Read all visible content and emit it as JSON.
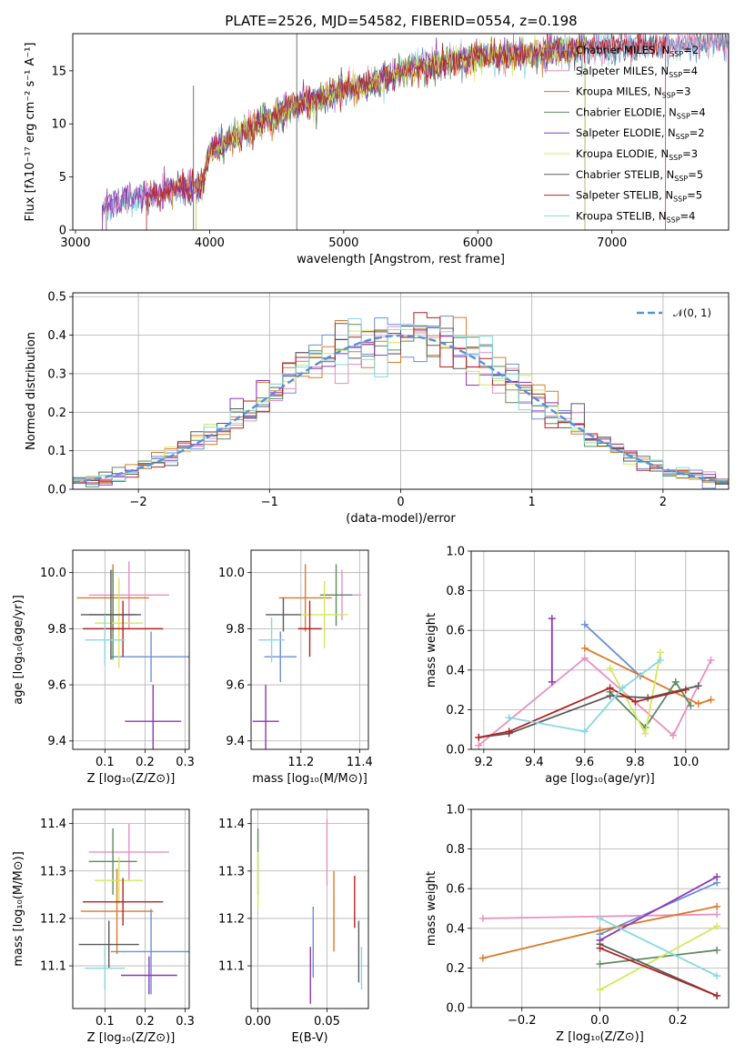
{
  "colors": {
    "chabrier_miles": "#6b8fd6",
    "salpeter_miles": "#e88fc0",
    "kroupa_miles": "#d97a2b",
    "chabrier_elodie": "#5e8a5e",
    "salpeter_elodie": "#8e35b8",
    "kroupa_elodie": "#d4e85a",
    "chabrier_stelib": "#5a5a5a",
    "salpeter_stelib": "#b22222",
    "kroupa_stelib": "#86d8e0"
  },
  "chart_data": [
    {
      "id": "spectrum",
      "type": "line",
      "title": "PLATE=2526, MJD=54582, FIBERID=0554, z=0.198",
      "xlabel": "wavelength [Angstrom, rest frame]",
      "ylabel": "Flux [fλ10⁻¹⁷ erg cm⁻² s⁻¹ A⁻¹]",
      "xlim": [
        2980,
        7870
      ],
      "ylim": [
        0,
        18.5
      ],
      "xticks": [
        "3000",
        "4000",
        "5000",
        "6000",
        "7000"
      ],
      "yticks": [
        "0",
        "5",
        "10",
        "15"
      ],
      "legend_position": "top-right",
      "legend": [
        {
          "key": "chabrier_miles",
          "label": "Chabrier MILES, N",
          "sub": "SSP",
          "suffix": "=2"
        },
        {
          "key": "salpeter_miles",
          "label": "Salpeter MILES, N",
          "sub": "SSP",
          "suffix": "=4"
        },
        {
          "key": "kroupa_miles",
          "label": "Kroupa MILES, N",
          "sub": "SSP",
          "suffix": "=3"
        },
        {
          "key": "chabrier_elodie",
          "label": "Chabrier ELODIE, N",
          "sub": "SSP",
          "suffix": "=4"
        },
        {
          "key": "salpeter_elodie",
          "label": "Salpeter ELODIE, N",
          "sub": "SSP",
          "suffix": "=2"
        },
        {
          "key": "kroupa_elodie",
          "label": "Kroupa ELODIE, N",
          "sub": "SSP",
          "suffix": "=3"
        },
        {
          "key": "chabrier_stelib",
          "label": "Chabrier STELIB, N",
          "sub": "SSP",
          "suffix": "=5"
        },
        {
          "key": "salpeter_stelib",
          "label": "Salpeter STELIB, N",
          "sub": "SSP",
          "suffix": "=5"
        },
        {
          "key": "kroupa_stelib",
          "label": "Kroupa STELIB, N",
          "sub": "SSP",
          "suffix": "=4"
        }
      ],
      "continuum": [
        [
          3200,
          2.0
        ],
        [
          3400,
          3.0
        ],
        [
          3600,
          3.3
        ],
        [
          3800,
          4.0
        ],
        [
          3950,
          4.2
        ],
        [
          4000,
          7.5
        ],
        [
          4200,
          8.8
        ],
        [
          4400,
          10.3
        ],
        [
          4600,
          11.5
        ],
        [
          4800,
          12.3
        ],
        [
          5000,
          13.2
        ],
        [
          5200,
          13.8
        ],
        [
          5400,
          14.8
        ],
        [
          5600,
          15.4
        ],
        [
          5800,
          15.9
        ],
        [
          6000,
          16.2
        ],
        [
          6200,
          16.5
        ],
        [
          6400,
          16.6
        ],
        [
          6600,
          16.9
        ],
        [
          6800,
          17.1
        ],
        [
          7000,
          17.2
        ],
        [
          7200,
          17.3
        ],
        [
          7400,
          17.4
        ],
        [
          7600,
          17.4
        ],
        [
          7870,
          17.5
        ]
      ],
      "model_starts": [
        3200,
        3200,
        3530,
        3900,
        3200,
        3900,
        3200,
        3530,
        3200
      ],
      "model_ends": [
        7870,
        7870,
        6800,
        6800,
        6800,
        6800,
        7870,
        7400,
        7870
      ]
    },
    {
      "id": "residuals",
      "type": "histogram",
      "xlabel": "(data-model)/error",
      "ylabel": "Normed distribution",
      "xlim": [
        -2.5,
        2.5
      ],
      "ylim": [
        0,
        0.51
      ],
      "xticks": [
        "−2",
        "−1",
        "0",
        "1",
        "2"
      ],
      "yticks": [
        "0.0",
        "0.1",
        "0.2",
        "0.3",
        "0.4",
        "0.5"
      ],
      "bin_width": 0.1,
      "legend": "𝒩(0, 1)",
      "legend_position": "top-right"
    },
    {
      "id": "age_vs_Z",
      "type": "errorbar",
      "xlabel": "Z [log₁₀(Z/Z⊙)]",
      "ylabel": "age [log₁₀(age/yr)]",
      "xlim": [
        0.02,
        0.31
      ],
      "ylim": [
        9.37,
        10.08
      ],
      "xticks": [
        "0.1",
        "0.2",
        "0.3"
      ],
      "yticks": [
        "9.4",
        "9.6",
        "9.8",
        "10.0"
      ],
      "points": [
        {
          "key": "chabrier_miles",
          "x": 0.215,
          "xerr": 0.1,
          "y": 9.7,
          "yerr": 0.09
        },
        {
          "key": "salpeter_miles",
          "x": 0.16,
          "xerr": 0.1,
          "y": 9.92,
          "yerr": 0.12
        },
        {
          "key": "kroupa_miles",
          "x": 0.12,
          "xerr": 0.09,
          "y": 9.91,
          "yerr": 0.12
        },
        {
          "key": "chabrier_elodie",
          "x": 0.12,
          "xerr": 0.06,
          "y": 9.85,
          "yerr": 0.16
        },
        {
          "key": "salpeter_elodie",
          "x": 0.22,
          "xerr": 0.07,
          "y": 9.47,
          "yerr": 0.13
        },
        {
          "key": "kroupa_elodie",
          "x": 0.135,
          "xerr": 0.06,
          "y": 9.82,
          "yerr": 0.16
        },
        {
          "key": "chabrier_stelib",
          "x": 0.115,
          "xerr": 0.075,
          "y": 9.85,
          "yerr": 0.16
        },
        {
          "key": "salpeter_stelib",
          "x": 0.145,
          "xerr": 0.1,
          "y": 9.8,
          "yerr": 0.1
        },
        {
          "key": "kroupa_stelib",
          "x": 0.1,
          "xerr": 0.05,
          "y": 9.76,
          "yerr": 0.09
        }
      ]
    },
    {
      "id": "age_vs_mass",
      "type": "errorbar",
      "xlabel": "mass [log₁₀(M/M⊙)]",
      "ylabel": "",
      "xlim": [
        11.03,
        11.43
      ],
      "ylim": [
        9.37,
        10.08
      ],
      "xticks": [
        "11.2",
        "11.4"
      ],
      "yticks": [
        "9.4",
        "9.6",
        "9.8",
        "10.0"
      ],
      "points": [
        {
          "key": "chabrier_miles",
          "x": 11.13,
          "xerr": 0.055,
          "y": 9.7,
          "yerr": 0.09
        },
        {
          "key": "salpeter_miles",
          "x": 11.34,
          "xerr": 0.065,
          "y": 9.92,
          "yerr": 0.09
        },
        {
          "key": "kroupa_miles",
          "x": 11.215,
          "xerr": 0.09,
          "y": 9.91,
          "yerr": 0.12
        },
        {
          "key": "chabrier_elodie",
          "x": 11.32,
          "xerr": 0.055,
          "y": 9.92,
          "yerr": 0.11
        },
        {
          "key": "salpeter_elodie",
          "x": 11.08,
          "xerr": 0.045,
          "y": 9.47,
          "yerr": 0.13
        },
        {
          "key": "kroupa_elodie",
          "x": 11.28,
          "xerr": 0.08,
          "y": 9.85,
          "yerr": 0.12
        },
        {
          "key": "chabrier_stelib",
          "x": 11.14,
          "xerr": 0.06,
          "y": 9.85,
          "yerr": 0.06
        },
        {
          "key": "salpeter_stelib",
          "x": 11.23,
          "xerr": 0.04,
          "y": 9.8,
          "yerr": 0.1
        },
        {
          "key": "kroupa_stelib",
          "x": 11.1,
          "xerr": 0.045,
          "y": 9.76,
          "yerr": 0.08
        }
      ]
    },
    {
      "id": "weight_vs_age",
      "type": "line",
      "xlabel": "age [log₁₀(age/yr)]",
      "ylabel": "mass weight",
      "xlim": [
        9.15,
        10.17
      ],
      "ylim": [
        0,
        1.0
      ],
      "xticks": [
        "9.2",
        "9.4",
        "9.6",
        "9.8",
        "10.0"
      ],
      "yticks": [
        "0.0",
        "0.2",
        "0.4",
        "0.6",
        "0.8",
        "1.0"
      ],
      "series": [
        {
          "key": "chabrier_miles",
          "x": [
            9.6,
            9.82
          ],
          "y": [
            0.63,
            0.37
          ]
        },
        {
          "key": "salpeter_miles",
          "x": [
            9.18,
            9.6,
            9.95,
            10.1
          ],
          "y": [
            0.02,
            0.46,
            0.07,
            0.45
          ]
        },
        {
          "key": "kroupa_miles",
          "x": [
            9.6,
            10.05,
            10.1
          ],
          "y": [
            0.51,
            0.23,
            0.25
          ]
        },
        {
          "key": "chabrier_elodie",
          "x": [
            9.7,
            9.84,
            9.96,
            10.02
          ],
          "y": [
            0.29,
            0.11,
            0.34,
            0.22
          ]
        },
        {
          "key": "salpeter_elodie",
          "x": [
            9.47,
            9.47
          ],
          "y": [
            0.66,
            0.34
          ]
        },
        {
          "key": "kroupa_elodie",
          "x": [
            9.7,
            9.84,
            9.9
          ],
          "y": [
            0.41,
            0.08,
            0.49
          ]
        },
        {
          "key": "chabrier_stelib",
          "x": [
            9.18,
            9.3,
            9.7,
            9.85,
            10.05
          ],
          "y": [
            0.06,
            0.08,
            0.27,
            0.26,
            0.32
          ]
        },
        {
          "key": "salpeter_stelib",
          "x": [
            9.18,
            9.3,
            9.7,
            9.8,
            10.0
          ],
          "y": [
            0.06,
            0.09,
            0.31,
            0.24,
            0.3
          ]
        },
        {
          "key": "kroupa_stelib",
          "x": [
            9.3,
            9.6,
            9.75,
            9.9
          ],
          "y": [
            0.16,
            0.09,
            0.31,
            0.45
          ]
        }
      ]
    },
    {
      "id": "mass_vs_Z",
      "type": "errorbar",
      "xlabel": "Z [log₁₀(Z/Z⊙)]",
      "ylabel": "mass [log₁₀(M/M⊙)]",
      "xlim": [
        0.02,
        0.31
      ],
      "ylim": [
        11.01,
        11.43
      ],
      "xticks": [
        "0.1",
        "0.2",
        "0.3"
      ],
      "yticks": [
        "11.1",
        "11.2",
        "11.3",
        "11.4"
      ],
      "points": [
        {
          "key": "chabrier_miles",
          "x": 0.215,
          "xerr": 0.1,
          "y": 11.13,
          "yerr": 0.09
        },
        {
          "key": "salpeter_miles",
          "x": 0.16,
          "xerr": 0.1,
          "y": 11.34,
          "yerr": 0.06
        },
        {
          "key": "kroupa_miles",
          "x": 0.13,
          "xerr": 0.09,
          "y": 11.215,
          "yerr": 0.09
        },
        {
          "key": "chabrier_elodie",
          "x": 0.12,
          "xerr": 0.06,
          "y": 11.32,
          "yerr": 0.07
        },
        {
          "key": "salpeter_elodie",
          "x": 0.21,
          "xerr": 0.07,
          "y": 11.08,
          "yerr": 0.04
        },
        {
          "key": "kroupa_elodie",
          "x": 0.135,
          "xerr": 0.06,
          "y": 11.28,
          "yerr": 0.05
        },
        {
          "key": "chabrier_stelib",
          "x": 0.11,
          "xerr": 0.075,
          "y": 11.145,
          "yerr": 0.05
        },
        {
          "key": "salpeter_stelib",
          "x": 0.145,
          "xerr": 0.1,
          "y": 11.235,
          "yerr": 0.05
        },
        {
          "key": "kroupa_stelib",
          "x": 0.1,
          "xerr": 0.05,
          "y": 11.095,
          "yerr": 0.045
        }
      ]
    },
    {
      "id": "mass_vs_ebv",
      "type": "errorbar",
      "xlabel": "E(B-V)",
      "ylabel": "",
      "xlim": [
        -0.005,
        0.08
      ],
      "ylim": [
        11.01,
        11.43
      ],
      "xticks": [
        "0.00",
        "0.05"
      ],
      "yticks": [
        "11.1",
        "11.2",
        "11.3",
        "11.4"
      ],
      "points": [
        {
          "key": "chabrier_miles",
          "x": 0.04,
          "xerr": 0,
          "y": 11.15,
          "yerr": 0.075
        },
        {
          "key": "salpeter_miles",
          "x": 0.05,
          "xerr": 0,
          "y": 11.34,
          "yerr": 0.07
        },
        {
          "key": "kroupa_miles",
          "x": 0.055,
          "xerr": 0,
          "y": 11.215,
          "yerr": 0.085
        },
        {
          "key": "chabrier_elodie",
          "x": 0.0,
          "xerr": 0,
          "y": 11.32,
          "yerr": 0.07
        },
        {
          "key": "salpeter_elodie",
          "x": 0.038,
          "xerr": 0,
          "y": 11.08,
          "yerr": 0.06
        },
        {
          "key": "kroupa_elodie",
          "x": 0.0,
          "xerr": 0,
          "y": 11.28,
          "yerr": 0.06
        },
        {
          "key": "chabrier_stelib",
          "x": 0.073,
          "xerr": 0,
          "y": 11.13,
          "yerr": 0.065
        },
        {
          "key": "salpeter_stelib",
          "x": 0.07,
          "xerr": 0,
          "y": 11.235,
          "yerr": 0.055
        },
        {
          "key": "kroupa_stelib",
          "x": 0.075,
          "xerr": 0,
          "y": 11.095,
          "yerr": 0.045
        }
      ]
    },
    {
      "id": "weight_vs_Z",
      "type": "line",
      "xlabel": "Z [log₁₀(Z/Z⊙)]",
      "ylabel": "mass weight",
      "xlim": [
        -0.33,
        0.33
      ],
      "ylim": [
        0,
        1.0
      ],
      "xticks": [
        "−0.2",
        "0.0",
        "0.2"
      ],
      "yticks": [
        "0.0",
        "0.2",
        "0.4",
        "0.6",
        "0.8",
        "1.0"
      ],
      "series": [
        {
          "key": "chabrier_miles",
          "x": [
            0.0,
            0.3
          ],
          "y": [
            0.37,
            0.63
          ]
        },
        {
          "key": "salpeter_miles",
          "x": [
            -0.3,
            0.3
          ],
          "y": [
            0.45,
            0.47
          ]
        },
        {
          "key": "kroupa_miles",
          "x": [
            -0.3,
            0.0,
            0.3
          ],
          "y": [
            0.25,
            0.39,
            0.51
          ]
        },
        {
          "key": "chabrier_elodie",
          "x": [
            0.0,
            0.3
          ],
          "y": [
            0.22,
            0.29
          ]
        },
        {
          "key": "salpeter_elodie",
          "x": [
            0.0,
            0.3
          ],
          "y": [
            0.34,
            0.66
          ]
        },
        {
          "key": "kroupa_elodie",
          "x": [
            0.0,
            0.3
          ],
          "y": [
            0.09,
            0.41
          ]
        },
        {
          "key": "chabrier_stelib",
          "x": [
            0.0,
            0.3
          ],
          "y": [
            0.32,
            0.06
          ]
        },
        {
          "key": "salpeter_stelib",
          "x": [
            0.0,
            0.3
          ],
          "y": [
            0.3,
            0.06
          ]
        },
        {
          "key": "kroupa_stelib",
          "x": [
            0.0,
            0.3
          ],
          "y": [
            0.45,
            0.16
          ]
        }
      ]
    }
  ]
}
